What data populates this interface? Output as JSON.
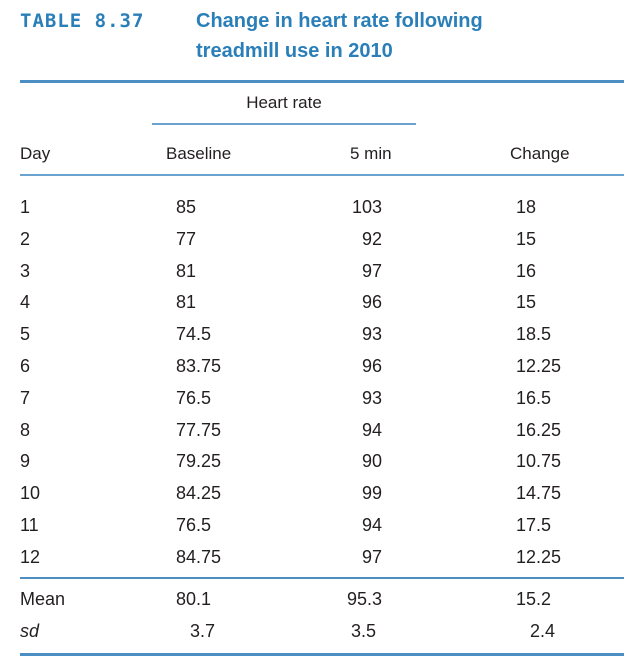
{
  "table": {
    "label": "TABLE 8.37",
    "title_line1": "Change in heart rate following",
    "title_line2": "treadmill use in 2010",
    "span_header": "Heart rate",
    "columns": [
      "Day",
      "Baseline",
      "5 min",
      "Change"
    ],
    "rows": [
      {
        "day": "1",
        "baseline": "85",
        "five_min": "103",
        "change": "18"
      },
      {
        "day": "2",
        "baseline": "77",
        "five_min": "92",
        "change": "15"
      },
      {
        "day": "3",
        "baseline": "81",
        "five_min": "97",
        "change": "16"
      },
      {
        "day": "4",
        "baseline": "81",
        "five_min": "96",
        "change": "15"
      },
      {
        "day": "5",
        "baseline": "74.5",
        "five_min": "93",
        "change": "18.5"
      },
      {
        "day": "6",
        "baseline": "83.75",
        "five_min": "96",
        "change": "12.25"
      },
      {
        "day": "7",
        "baseline": "76.5",
        "five_min": "93",
        "change": "16.5"
      },
      {
        "day": "8",
        "baseline": "77.75",
        "five_min": "94",
        "change": "16.25"
      },
      {
        "day": "9",
        "baseline": "79.25",
        "five_min": "90",
        "change": "10.75"
      },
      {
        "day": "10",
        "baseline": "84.25",
        "five_min": "99",
        "change": "14.75"
      },
      {
        "day": "11",
        "baseline": "76.5",
        "five_min": "94",
        "change": "17.5"
      },
      {
        "day": "12",
        "baseline": "84.75",
        "five_min": "97",
        "change": "12.25"
      }
    ],
    "summary": [
      {
        "label": "Mean",
        "baseline": "80.1",
        "five_min": "95.3",
        "change": "15.2"
      },
      {
        "label": "sd",
        "baseline": "3.7",
        "five_min": "3.5",
        "change": "2.4"
      }
    ],
    "accent_color": "#2a7fb8"
  }
}
